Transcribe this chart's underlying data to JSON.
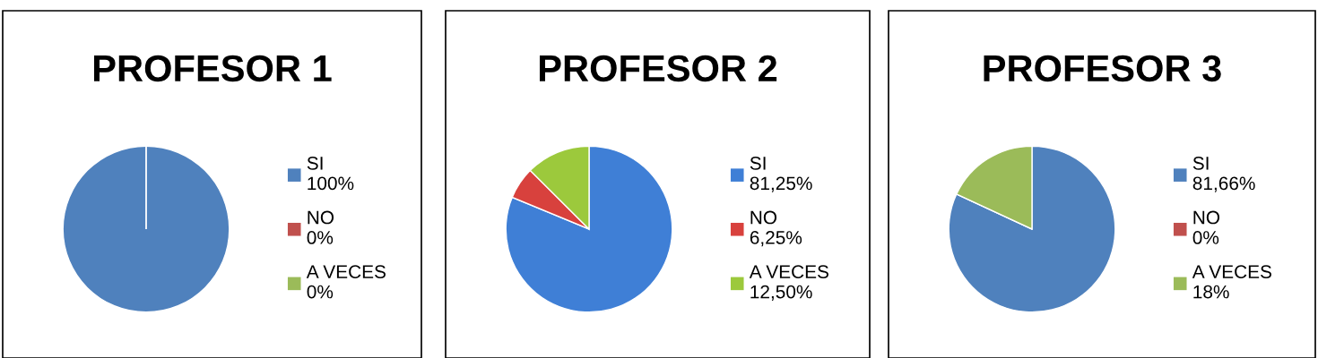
{
  "chart_data": [
    {
      "type": "pie",
      "title": "PROFESOR 1",
      "categories": [
        "SI\n100%",
        "NO\n0%",
        "A VECES\n0%"
      ],
      "values": [
        100,
        0,
        0
      ],
      "colors": [
        "#4f81bd",
        "#c0504d",
        "#9bbb59"
      ],
      "legend": "right"
    },
    {
      "type": "pie",
      "title": "PROFESOR 2",
      "categories": [
        "SI\n81,25%",
        "NO\n6,25%",
        "A VECES\n12,50%"
      ],
      "values": [
        81.25,
        6.25,
        12.5
      ],
      "colors": [
        "#3f7fd6",
        "#d8413d",
        "#9cc93c"
      ],
      "legend": "right"
    },
    {
      "type": "pie",
      "title": "PROFESOR 3",
      "categories": [
        "SI\n81,66%",
        "NO\n0%",
        "A VECES\n18%"
      ],
      "values": [
        81.66,
        0,
        18
      ],
      "colors": [
        "#4f81bd",
        "#c0504d",
        "#9bbb59"
      ],
      "legend": "right"
    }
  ]
}
